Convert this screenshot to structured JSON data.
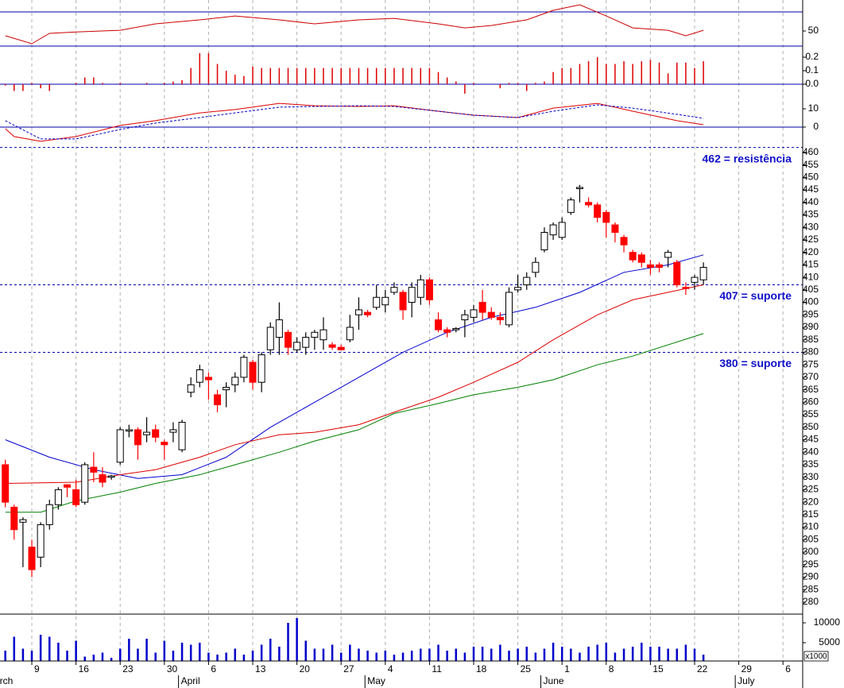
{
  "chart_data": [
    {
      "type": "line",
      "xlim": [
        -3.6,
        87.23
      ],
      "ylim": [
        34.2,
        82.5
      ],
      "yticks": [
        50
      ],
      "hlines": [
        70
      ],
      "series": [
        {
          "color": "#cc0000",
          "x": [
            -3,
            0,
            2,
            5,
            10,
            14,
            19,
            23,
            28,
            32,
            37,
            41,
            46,
            49,
            52,
            56,
            59,
            62,
            65,
            68,
            72,
            74,
            76
          ],
          "values": [
            45,
            36.7,
            47.5,
            49,
            50.8,
            57.5,
            61.7,
            65.8,
            61.7,
            57.5,
            61.7,
            63.3,
            57.5,
            53.3,
            55.8,
            61.7,
            71.7,
            77.5,
            65.8,
            53.3,
            50.8,
            45,
            50.8
          ]
        }
      ]
    },
    {
      "type": "bar",
      "color": "#dd0000",
      "zero_line": true,
      "xlim": [
        -3.6,
        87.23
      ],
      "ylim": [
        -0.0706,
        0.2824
      ],
      "yticks": [
        0.2,
        0.1,
        {
          "value": 0,
          "label": "0.0"
        }
      ],
      "x": [
        -3,
        -2,
        -1,
        0,
        1,
        2,
        3,
        4,
        5,
        6,
        7,
        8,
        9,
        10,
        11,
        12,
        13,
        14,
        15,
        16,
        17,
        18,
        19,
        20,
        21,
        22,
        23,
        24,
        25,
        26,
        27,
        28,
        29,
        30,
        31,
        32,
        33,
        34,
        35,
        36,
        37,
        38,
        39,
        40,
        41,
        42,
        43,
        44,
        45,
        46,
        47,
        48,
        49,
        50,
        51,
        52,
        53,
        54,
        55,
        56,
        57,
        58,
        59,
        60,
        61,
        62,
        63,
        64,
        65,
        66,
        67,
        68,
        69,
        70,
        71,
        72,
        73,
        74,
        75,
        76
      ],
      "values": [
        -0.01,
        -0.05,
        -0.05,
        0.01,
        -0.03,
        -0.05,
        0,
        0,
        0.01,
        0.05,
        0.05,
        0.01,
        0,
        0.01,
        0,
        0,
        0.01,
        0,
        0.01,
        0.02,
        0.03,
        0.12,
        0.23,
        0.23,
        0.15,
        0.1,
        0.07,
        0.06,
        0.13,
        0.12,
        0.12,
        0.12,
        0.12,
        0.12,
        0.12,
        0.12,
        0.12,
        0.12,
        0.12,
        0.12,
        0.12,
        0.12,
        0.12,
        0.12,
        0.12,
        0.12,
        0.12,
        0.12,
        0.12,
        0.09,
        0.05,
        0.02,
        -0.07,
        0.01,
        0,
        0,
        -0.03,
        0.01,
        0.01,
        -0.05,
        0.01,
        0.02,
        0.09,
        0.12,
        0.12,
        0.15,
        0.17,
        0.2,
        0.15,
        0.15,
        0.17,
        0.15,
        0.17,
        0.18,
        0.16,
        0.08,
        0.16,
        0.16,
        0.12,
        0.17
      ]
    },
    {
      "type": "line",
      "zero_line": true,
      "xlim": [
        -3.6,
        87.23
      ],
      "ylim": [
        -10.9,
        23.5
      ],
      "yticks": [
        10,
        0
      ],
      "series": [
        {
          "color": "#dd0000",
          "x": [
            -3,
            -2,
            1,
            5,
            10,
            14,
            19,
            23,
            28,
            32,
            37,
            41,
            46,
            50,
            55,
            59,
            64,
            68,
            73,
            76
          ],
          "values": [
            -0.9,
            -5.2,
            -7.8,
            -5.2,
            0.9,
            3.5,
            7.8,
            9.6,
            13,
            11.7,
            11.3,
            11.7,
            8.7,
            6.5,
            5.2,
            10.4,
            13,
            8.7,
            3.5,
            1.3
          ]
        },
        {
          "color": "#0000cc",
          "dash": true,
          "x": [
            -3,
            -2,
            1,
            5,
            10,
            14,
            19,
            23,
            28,
            32,
            37,
            41,
            46,
            50,
            55,
            59,
            64,
            68,
            73,
            76
          ],
          "values": [
            3.5,
            1,
            -6.5,
            -6.5,
            -1.3,
            2.2,
            5.2,
            7.8,
            10.9,
            11.3,
            11.7,
            11.3,
            8.7,
            6.5,
            5.2,
            8.7,
            12.2,
            10.4,
            7,
            4.8
          ]
        }
      ]
    },
    {
      "type": "candlestick",
      "up_color": "#ffffff",
      "down_color": "#ff0000",
      "xlim": [
        -3.6,
        87.23
      ],
      "ylim": [
        275.2,
        469.5
      ],
      "yticks": [
        280,
        285,
        290,
        295,
        300,
        305,
        310,
        315,
        320,
        325,
        330,
        335,
        340,
        345,
        350,
        355,
        360,
        365,
        370,
        375,
        380,
        385,
        390,
        395,
        400,
        405,
        410,
        415,
        420,
        425,
        430,
        435,
        440,
        445,
        450,
        455,
        460
      ],
      "levels": [
        {
          "value": 462,
          "label": "462 = resistência"
        },
        {
          "value": 407,
          "label": "407 = suporte"
        },
        {
          "value": 380,
          "label": "380 = suporte"
        }
      ],
      "x": [
        -3,
        -2,
        -1,
        0,
        1,
        2,
        3,
        4,
        5,
        6,
        7,
        8,
        9,
        10,
        11,
        12,
        13,
        14,
        15,
        16,
        17,
        18,
        19,
        20,
        21,
        22,
        23,
        24,
        25,
        26,
        27,
        28,
        29,
        30,
        31,
        32,
        33,
        34,
        35,
        36,
        37,
        38,
        39,
        40,
        41,
        42,
        43,
        44,
        45,
        46,
        47,
        48,
        49,
        50,
        51,
        52,
        53,
        54,
        55,
        56,
        57,
        58,
        59,
        60,
        61,
        62,
        63,
        64,
        65,
        66,
        67,
        68,
        69,
        70,
        71,
        72,
        73,
        74,
        75,
        76
      ],
      "open": [
        335,
        318,
        312,
        302,
        298,
        311,
        319,
        327,
        325,
        320,
        334,
        331,
        330,
        336,
        348.5,
        349,
        347,
        349,
        344,
        348,
        341,
        364,
        368,
        370,
        363,
        365,
        367,
        370,
        376,
        368,
        381,
        386,
        388,
        381,
        382,
        386,
        385,
        383,
        382,
        385,
        395,
        396,
        398,
        399,
        404,
        404,
        400,
        402,
        409,
        393,
        389,
        389,
        393,
        394,
        400,
        396,
        394,
        391,
        405,
        407,
        412,
        421,
        427,
        426,
        436,
        445.5,
        440,
        439,
        436,
        431,
        426,
        420,
        419,
        415,
        415,
        418,
        416,
        406,
        408,
        409
      ],
      "high": [
        337,
        319,
        314,
        305,
        312,
        321,
        326,
        327,
        329,
        336,
        340,
        334,
        331,
        350,
        351,
        350,
        354,
        351,
        345,
        352,
        353,
        370,
        375,
        372,
        365,
        368,
        372,
        379,
        377,
        380,
        392,
        400,
        389,
        386,
        388,
        389,
        394,
        384,
        383,
        395,
        402,
        397,
        407,
        405,
        408,
        405,
        408,
        411,
        410,
        396,
        390,
        390,
        397,
        399,
        405,
        398,
        396,
        406,
        411,
        412,
        418,
        430,
        432,
        434,
        442,
        447,
        442,
        440,
        437,
        432,
        427,
        421,
        420,
        417,
        416,
        421,
        417,
        408,
        411,
        416
      ],
      "low": [
        318,
        305,
        294,
        290,
        294,
        309,
        317,
        322,
        318,
        319,
        328,
        326,
        329,
        335,
        346,
        337,
        344,
        344,
        337,
        344,
        340,
        362,
        366,
        361,
        356,
        358,
        364,
        368,
        365,
        364,
        379,
        379,
        379,
        380,
        379,
        381,
        381,
        381,
        381,
        384,
        389,
        394,
        397,
        396,
        403,
        393,
        394,
        399,
        399,
        388,
        386,
        388,
        386,
        392,
        393,
        393,
        391,
        390,
        404,
        405,
        410,
        420,
        425,
        425,
        435,
        440,
        438,
        432,
        426,
        424,
        420,
        416,
        414,
        411,
        412,
        414,
        406,
        403,
        405,
        407
      ],
      "close": [
        320,
        309,
        313,
        293,
        311,
        319,
        325,
        326,
        319,
        335,
        332,
        328,
        330.5,
        349,
        349,
        343,
        348,
        346,
        343,
        349,
        352,
        367,
        373,
        369,
        359,
        366,
        370,
        378,
        368,
        379,
        390,
        393,
        382,
        384,
        386,
        388,
        389,
        382,
        381,
        390,
        397,
        395,
        402,
        402,
        406,
        397,
        406,
        409,
        401,
        389,
        388,
        389.5,
        395,
        397,
        396,
        394,
        393,
        404,
        406,
        410,
        416,
        428,
        431,
        432,
        441,
        446,
        439,
        434,
        432,
        428,
        423,
        417,
        416,
        414,
        414,
        420,
        407,
        405.5,
        410,
        414
      ],
      "series": [
        {
          "color": "#0000cc",
          "x": [
            -3,
            2,
            7,
            12,
            17,
            22,
            27,
            32,
            37,
            42,
            47,
            52,
            57,
            62,
            67,
            72,
            76
          ],
          "values": [
            345,
            338,
            333,
            329.5,
            331,
            338,
            350,
            360,
            370,
            380,
            388,
            394,
            398,
            404,
            412,
            415,
            419
          ]
        },
        {
          "color": "#dd0000",
          "x": [
            -3,
            5,
            10,
            14,
            19,
            23,
            28,
            32,
            37,
            41,
            46,
            50,
            55,
            59,
            64,
            68,
            76
          ],
          "values": [
            327.5,
            328,
            331,
            333,
            338,
            343,
            347,
            348,
            351,
            356,
            362,
            368,
            376,
            385,
            395,
            401,
            407
          ]
        },
        {
          "color": "#008000",
          "x": [
            -3,
            1,
            5,
            10,
            14,
            19,
            23,
            28,
            32,
            37,
            41,
            46,
            50,
            55,
            59,
            64,
            68,
            76
          ],
          "values": [
            316,
            316,
            320.5,
            324,
            327.5,
            331,
            335,
            340,
            344.5,
            349,
            355.5,
            359.5,
            363,
            366,
            369,
            375,
            378.5,
            387.5
          ]
        }
      ]
    },
    {
      "type": "bar",
      "color": "#0000cc",
      "unit_label": "x1000",
      "xlim": [
        -3.6,
        87.23
      ],
      "ylim": [
        400,
        12200
      ],
      "yticks": [
        10000,
        5000
      ],
      "x": [
        -3,
        -2,
        -1,
        0,
        1,
        2,
        3,
        4,
        5,
        6,
        7,
        8,
        9,
        10,
        11,
        12,
        13,
        14,
        15,
        16,
        17,
        18,
        19,
        20,
        21,
        22,
        23,
        24,
        25,
        26,
        27,
        28,
        29,
        30,
        31,
        32,
        33,
        34,
        35,
        36,
        37,
        38,
        39,
        40,
        41,
        42,
        43,
        44,
        45,
        46,
        47,
        48,
        49,
        50,
        51,
        52,
        53,
        54,
        55,
        56,
        57,
        58,
        59,
        60,
        61,
        62,
        63,
        64,
        65,
        66,
        67,
        68,
        69,
        70,
        71,
        72,
        73,
        74,
        75,
        76
      ],
      "values": [
        3000,
        6500,
        3500,
        3000,
        7000,
        6500,
        5000,
        3000,
        5500,
        1500,
        2000,
        2500,
        1200,
        3500,
        6000,
        3500,
        6000,
        2500,
        5500,
        3000,
        5000,
        4500,
        5000,
        2500,
        2000,
        2500,
        3500,
        2000,
        3000,
        4500,
        6000,
        4000,
        10000,
        11200,
        5500,
        3500,
        3500,
        4500,
        2500,
        4500,
        3500,
        3000,
        2500,
        3000,
        2000,
        2500,
        3000,
        3500,
        3500,
        4500,
        3000,
        3500,
        2500,
        4000,
        4000,
        3500,
        4500,
        3000,
        3500,
        4000,
        2500,
        3500,
        5000,
        4000,
        3500,
        2500,
        4000,
        4500,
        5000,
        2500,
        3500,
        4000,
        5000,
        4000,
        4000,
        3500,
        3500,
        4500,
        3500,
        2000
      ],
      "xticks": [
        {
          "value": 0,
          "label": "9"
        },
        {
          "value": 5,
          "label": "16"
        },
        {
          "value": 10,
          "label": "23"
        },
        {
          "value": 15,
          "label": "30"
        },
        {
          "value": 20,
          "label": "6"
        },
        {
          "value": 25,
          "label": "13"
        },
        {
          "value": 30,
          "label": "20"
        },
        {
          "value": 35,
          "label": "27"
        },
        {
          "value": 40,
          "label": "4"
        },
        {
          "value": 45,
          "label": "11"
        },
        {
          "value": 50,
          "label": "18"
        },
        {
          "value": 55,
          "label": "25"
        },
        {
          "value": 60,
          "label": "1"
        },
        {
          "value": 65,
          "label": "8"
        },
        {
          "value": 70,
          "label": "15"
        },
        {
          "value": 75,
          "label": "22"
        },
        {
          "value": 80,
          "label": "29"
        },
        {
          "value": 85,
          "label": "6"
        }
      ],
      "month_ticks": [
        {
          "value": -3.9,
          "label": "rch"
        },
        {
          "value": 16.6,
          "label": "April"
        },
        {
          "value": 37.7,
          "label": "May"
        },
        {
          "value": 57.6,
          "label": "June"
        },
        {
          "value": 79.6,
          "label": "July"
        }
      ]
    }
  ]
}
